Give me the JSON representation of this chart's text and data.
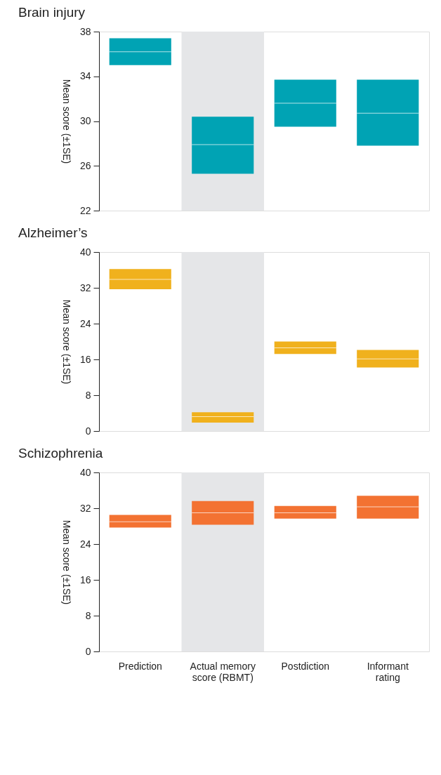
{
  "chart_data": [
    {
      "type": "box",
      "title": "Brain injury",
      "ylabel": "Mean score (±1SE)",
      "categories": [
        "Prediction",
        "Actual memory score (RBMT)",
        "Postdiction",
        "Informant rating"
      ],
      "ylim": [
        22,
        38
      ],
      "yticks": [
        22,
        26,
        30,
        34,
        38
      ],
      "tick_labels": "y",
      "grid": false,
      "color": "#00a3b4",
      "boxes": [
        {
          "low": 35.0,
          "q1": 35.0,
          "median": 36.2,
          "q3": 37.4,
          "high": 37.4
        },
        {
          "low": 25.3,
          "q1": 25.3,
          "median": 27.9,
          "q3": 30.4,
          "high": 30.4
        },
        {
          "low": 29.5,
          "q1": 29.5,
          "median": 31.6,
          "q3": 33.7,
          "high": 33.7
        },
        {
          "low": 27.8,
          "q1": 27.8,
          "median": 30.7,
          "q3": 33.7,
          "high": 33.7
        }
      ],
      "bands": [
        {
          "axis": "x",
          "from": "Actual memory score (RBMT)",
          "to": "Actual memory score (RBMT)",
          "color": "#e5e6e8"
        }
      ]
    },
    {
      "type": "box",
      "title": "Alzheimer’s",
      "ylabel": "Mean score (±1SE)",
      "categories": [
        "Prediction",
        "Actual memory score (RBMT)",
        "Postdiction",
        "Informant rating"
      ],
      "ylim": [
        0,
        40
      ],
      "yticks": [
        0,
        8,
        16,
        24,
        32,
        40
      ],
      "tick_labels": "y",
      "grid": false,
      "color": "#f0b11d",
      "boxes": [
        {
          "low": 31.7,
          "q1": 31.7,
          "median": 33.9,
          "q3": 36.2,
          "high": 36.2
        },
        {
          "low": 1.9,
          "q1": 1.9,
          "median": 3.2,
          "q3": 4.2,
          "high": 4.2
        },
        {
          "low": 17.2,
          "q1": 17.2,
          "median": 18.6,
          "q3": 20.0,
          "high": 20.0
        },
        {
          "low": 14.2,
          "q1": 14.2,
          "median": 16.1,
          "q3": 18.1,
          "high": 18.1
        }
      ],
      "bands": [
        {
          "axis": "x",
          "from": "Actual memory score (RBMT)",
          "to": "Actual memory score (RBMT)",
          "color": "#e5e6e8"
        }
      ]
    },
    {
      "type": "box",
      "title": "Schizophrenia",
      "ylabel": "Mean score (±1SE)",
      "categories": [
        "Prediction",
        "Actual memory score (RBMT)",
        "Postdiction",
        "Informant rating"
      ],
      "ylim": [
        0,
        40
      ],
      "yticks": [
        0,
        8,
        16,
        24,
        32,
        40
      ],
      "grid": false,
      "color": "#f37232",
      "boxes": [
        {
          "low": 27.7,
          "q1": 27.7,
          "median": 29.0,
          "q3": 30.5,
          "high": 30.5
        },
        {
          "low": 28.3,
          "q1": 28.3,
          "median": 31.0,
          "q3": 33.6,
          "high": 33.6
        },
        {
          "low": 29.7,
          "q1": 29.7,
          "median": 31.0,
          "q3": 32.5,
          "high": 32.5
        },
        {
          "low": 29.7,
          "q1": 29.7,
          "median": 32.3,
          "q3": 34.8,
          "high": 34.8
        }
      ],
      "bands": [
        {
          "axis": "x",
          "from": "Actual memory score (RBMT)",
          "to": "Actual memory score (RBMT)",
          "color": "#e5e6e8"
        }
      ]
    }
  ]
}
